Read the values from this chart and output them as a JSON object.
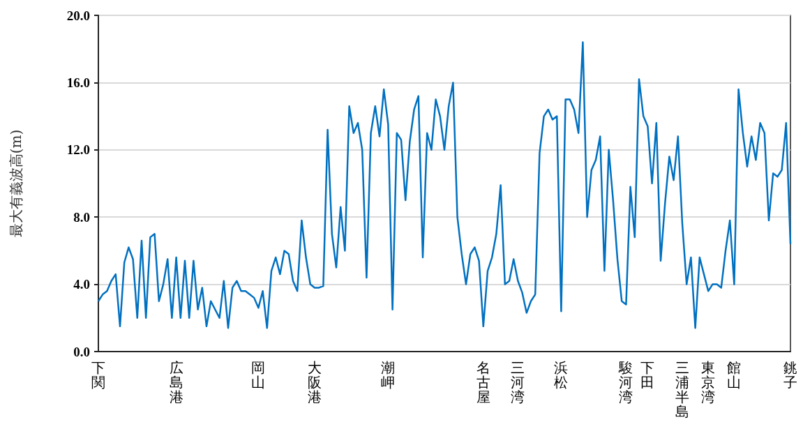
{
  "chart_data": {
    "type": "line",
    "ylabel": "最大有義波高(m)",
    "categories": [
      "下関",
      null,
      null,
      null,
      null,
      null,
      null,
      null,
      null,
      null,
      null,
      null,
      null,
      null,
      null,
      null,
      null,
      null,
      "広島港",
      null,
      null,
      null,
      null,
      null,
      null,
      null,
      null,
      null,
      null,
      null,
      null,
      null,
      null,
      null,
      null,
      null,
      null,
      "岡山",
      null,
      null,
      null,
      null,
      null,
      null,
      null,
      null,
      null,
      null,
      null,
      null,
      "大阪港",
      null,
      null,
      null,
      null,
      null,
      null,
      null,
      null,
      null,
      null,
      null,
      null,
      null,
      null,
      null,
      null,
      "潮岬",
      null,
      null,
      null,
      null,
      null,
      null,
      null,
      null,
      null,
      null,
      null,
      null,
      null,
      null,
      null,
      null,
      null,
      null,
      null,
      null,
      null,
      "名古屋",
      null,
      null,
      null,
      null,
      null,
      null,
      null,
      "三河湾",
      null,
      null,
      null,
      null,
      null,
      null,
      null,
      null,
      null,
      "浜松",
      null,
      null,
      null,
      null,
      null,
      null,
      null,
      null,
      null,
      null,
      null,
      null,
      null,
      null,
      "駿河湾",
      null,
      null,
      null,
      null,
      "下田",
      null,
      null,
      null,
      null,
      null,
      null,
      null,
      "三浦半島",
      null,
      null,
      null,
      null,
      null,
      "東京湾",
      null,
      null,
      null,
      null,
      null,
      "館山",
      null,
      null,
      null,
      null,
      null,
      null,
      null,
      null,
      null,
      null,
      null,
      null,
      "銚子"
    ],
    "series": [
      {
        "color": "#0070c0",
        "values": [
          3.0,
          3.4,
          3.6,
          4.2,
          4.6,
          1.5,
          5.3,
          6.2,
          5.5,
          2.0,
          6.6,
          2.0,
          6.8,
          7.0,
          3.0,
          4.0,
          5.5,
          2.0,
          5.6,
          2.0,
          5.4,
          2.0,
          5.4,
          2.5,
          3.8,
          1.5,
          3.0,
          2.5,
          2.0,
          4.2,
          1.4,
          3.8,
          4.2,
          3.6,
          3.6,
          3.4,
          3.2,
          2.6,
          3.6,
          1.4,
          4.8,
          5.6,
          4.6,
          6.0,
          5.8,
          4.2,
          3.6,
          7.8,
          5.6,
          4.0,
          3.8,
          3.8,
          3.9,
          13.2,
          7.0,
          5.0,
          8.6,
          6.0,
          14.6,
          13.0,
          13.6,
          12.0,
          4.4,
          13.0,
          14.6,
          12.8,
          15.6,
          13.5,
          2.5,
          13.0,
          12.6,
          9.0,
          12.5,
          14.4,
          15.2,
          5.6,
          13.0,
          12.0,
          15.0,
          14.0,
          12.0,
          14.6,
          16.0,
          8.0,
          5.8,
          4.0,
          5.8,
          6.2,
          5.4,
          1.5,
          4.8,
          5.6,
          7.0,
          9.9,
          4.0,
          4.2,
          5.5,
          4.2,
          3.5,
          2.3,
          3.0,
          3.4,
          11.8,
          14.0,
          14.4,
          13.8,
          14.0,
          2.4,
          15.0,
          15.0,
          14.4,
          13.0,
          18.4,
          8.0,
          10.8,
          11.4,
          12.8,
          4.8,
          12.0,
          9.0,
          5.5,
          3.0,
          2.8,
          9.8,
          6.8,
          16.2,
          14.0,
          13.4,
          10.0,
          13.6,
          5.4,
          8.8,
          11.6,
          10.2,
          12.8,
          7.6,
          4.0,
          5.6,
          1.4,
          5.6,
          4.6,
          3.6,
          4.0,
          4.0,
          3.8,
          6.0,
          7.8,
          4.0,
          15.6,
          13.0,
          11.0,
          12.8,
          11.4,
          13.6,
          13.0,
          7.8,
          10.6,
          10.4,
          10.8,
          13.6,
          6.4
        ]
      }
    ],
    "ylim": [
      0,
      20
    ],
    "yticks": [
      {
        "value": 0,
        "label": "0.0"
      },
      {
        "value": 4,
        "label": "4.0"
      },
      {
        "value": 8,
        "label": "8.0"
      },
      {
        "value": 12,
        "label": "12.0"
      },
      {
        "value": 16,
        "label": "16.0"
      },
      {
        "value": 20,
        "label": "20.0"
      }
    ],
    "grid": "y",
    "marker": "none",
    "line_style": "solid"
  }
}
